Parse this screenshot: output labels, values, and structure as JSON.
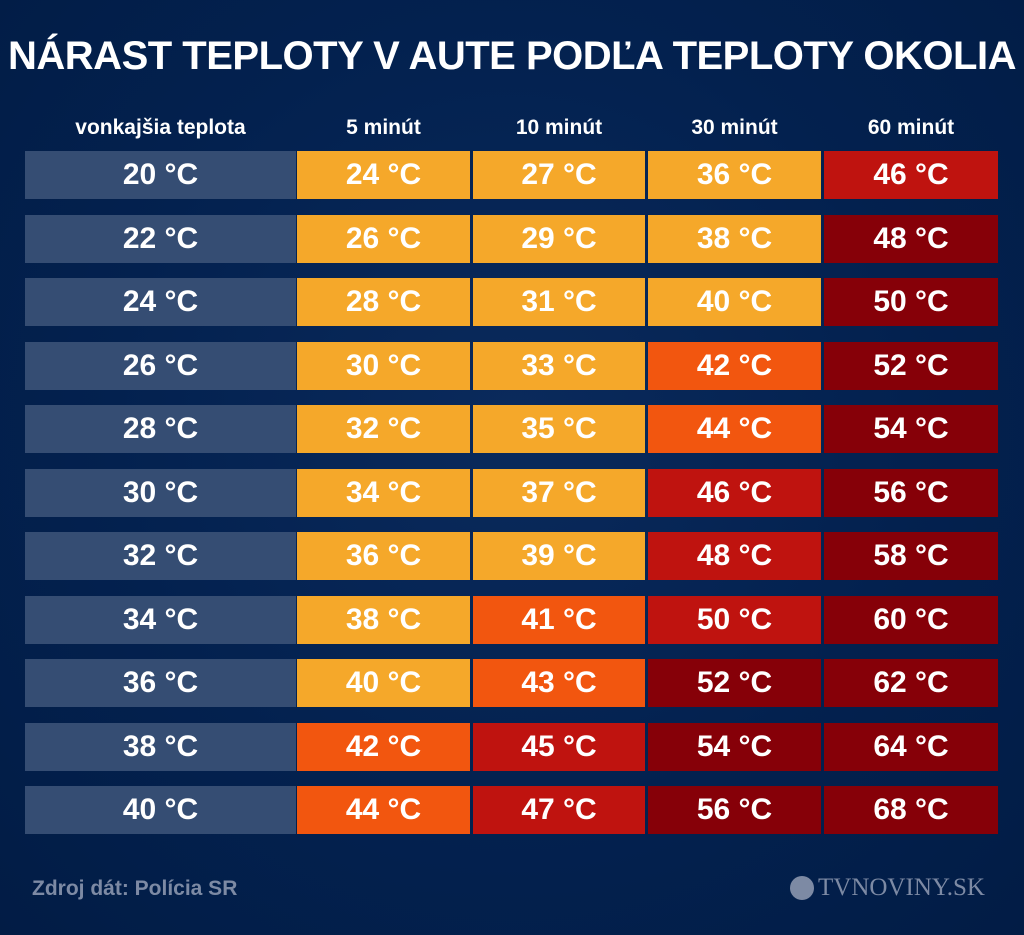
{
  "title": "NÁRAST TEPLOTY V AUTE PODĽA TEPLOTY OKOLIA",
  "footer": {
    "source": "Zdroj dát: Polícia SR",
    "logo": "TVNOVINY.SK"
  },
  "colors": {
    "background": "#03214f",
    "base": "#354d73",
    "yellow": "#f5a82a",
    "orange": "#f2560f",
    "red": "#bf130f",
    "darkred": "#860008"
  },
  "chart_data": {
    "type": "table",
    "title": "NÁRAST TEPLOTY V AUTE PODĽA TEPLOTY OKOLIA",
    "columns": [
      "vonkajšia teplota",
      "5 minút",
      "10 minút",
      "30 minút",
      "60 minút"
    ],
    "rows": [
      {
        "cells": [
          "20 °C",
          "24 °C",
          "27 °C",
          "36 °C",
          "46 °C"
        ],
        "levels": [
          "base",
          "yellow",
          "yellow",
          "yellow",
          "red"
        ]
      },
      {
        "cells": [
          "22 °C",
          "26 °C",
          "29 °C",
          "38 °C",
          "48 °C"
        ],
        "levels": [
          "base",
          "yellow",
          "yellow",
          "yellow",
          "darkred"
        ]
      },
      {
        "cells": [
          "24 °C",
          "28 °C",
          "31 °C",
          "40 °C",
          "50 °C"
        ],
        "levels": [
          "base",
          "yellow",
          "yellow",
          "yellow",
          "darkred"
        ]
      },
      {
        "cells": [
          "26 °C",
          "30 °C",
          "33 °C",
          "42 °C",
          "52 °C"
        ],
        "levels": [
          "base",
          "yellow",
          "yellow",
          "orange",
          "darkred"
        ]
      },
      {
        "cells": [
          "28 °C",
          "32 °C",
          "35 °C",
          "44 °C",
          "54 °C"
        ],
        "levels": [
          "base",
          "yellow",
          "yellow",
          "orange",
          "darkred"
        ]
      },
      {
        "cells": [
          "30 °C",
          "34 °C",
          "37 °C",
          "46 °C",
          "56 °C"
        ],
        "levels": [
          "base",
          "yellow",
          "yellow",
          "red",
          "darkred"
        ]
      },
      {
        "cells": [
          "32 °C",
          "36 °C",
          "39 °C",
          "48 °C",
          "58 °C"
        ],
        "levels": [
          "base",
          "yellow",
          "yellow",
          "red",
          "darkred"
        ]
      },
      {
        "cells": [
          "34 °C",
          "38 °C",
          "41 °C",
          "50 °C",
          "60 °C"
        ],
        "levels": [
          "base",
          "yellow",
          "orange",
          "red",
          "darkred"
        ]
      },
      {
        "cells": [
          "36 °C",
          "40 °C",
          "43 °C",
          "52 °C",
          "62 °C"
        ],
        "levels": [
          "base",
          "yellow",
          "orange",
          "darkred",
          "darkred"
        ]
      },
      {
        "cells": [
          "38 °C",
          "42 °C",
          "45 °C",
          "54 °C",
          "64 °C"
        ],
        "levels": [
          "base",
          "orange",
          "red",
          "darkred",
          "darkred"
        ]
      },
      {
        "cells": [
          "40 °C",
          "44 °C",
          "47 °C",
          "56 °C",
          "68 °C"
        ],
        "levels": [
          "base",
          "orange",
          "red",
          "darkred",
          "darkred"
        ]
      }
    ]
  }
}
